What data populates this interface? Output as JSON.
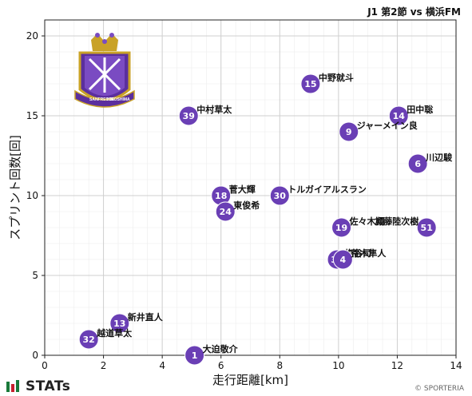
{
  "header": {
    "title": "J1 第2節 vs 横浜FM"
  },
  "footer": {
    "brand": "STATs",
    "credit": "© SPORTERIA"
  },
  "logo": {
    "text_top": "SANFRECCE",
    "text_bottom": "HIROSHIMA"
  },
  "colors": {
    "point": "#6a3fb5",
    "point_stroke": "#ffffff",
    "grid": "#cfcfcf",
    "brand_green": "#1a7a3a",
    "brand_red": "#c8202f"
  },
  "chart_data": {
    "type": "scatter",
    "title": "J1 第2節 vs 横浜FM",
    "xlabel": "走行距離[km]",
    "ylabel": "スプリント回数[回]",
    "xlim": [
      0,
      14
    ],
    "ylim": [
      0,
      21
    ],
    "xticks": [
      0,
      2,
      4,
      6,
      8,
      10,
      12,
      14
    ],
    "yticks": [
      0,
      5,
      10,
      15,
      20
    ],
    "grid": true,
    "points": [
      {
        "num": "15",
        "name": "中野就斗",
        "x": 9.05,
        "y": 17
      },
      {
        "num": "39",
        "name": "中村草太",
        "x": 4.9,
        "y": 15
      },
      {
        "num": "14",
        "name": "田中聡",
        "x": 12.05,
        "y": 15
      },
      {
        "num": "9",
        "name": "ジャーメイン良",
        "x": 10.35,
        "y": 14
      },
      {
        "num": "6",
        "name": "川辺駿",
        "x": 12.7,
        "y": 12
      },
      {
        "num": "18",
        "name": "菅大輝",
        "x": 6.0,
        "y": 10
      },
      {
        "num": "30",
        "name": "トルガイアルスラン",
        "x": 8.0,
        "y": 10
      },
      {
        "num": "24",
        "name": "東俊希",
        "x": 6.15,
        "y": 9
      },
      {
        "num": "19",
        "name": "佐々木翔",
        "x": 10.1,
        "y": 8
      },
      {
        "num": "51",
        "name": "加藤陸次樹",
        "x": 13.0,
        "y": 8
      },
      {
        "num": "33",
        "name": "塩谷司",
        "x": 9.95,
        "y": 6
      },
      {
        "num": "4",
        "name": "荒木隼人",
        "x": 10.15,
        "y": 6
      },
      {
        "num": "13",
        "name": "新井直人",
        "x": 2.55,
        "y": 2
      },
      {
        "num": "32",
        "name": "越道草太",
        "x": 1.5,
        "y": 1
      },
      {
        "num": "1",
        "name": "大迫敬介",
        "x": 5.1,
        "y": 0
      }
    ]
  }
}
